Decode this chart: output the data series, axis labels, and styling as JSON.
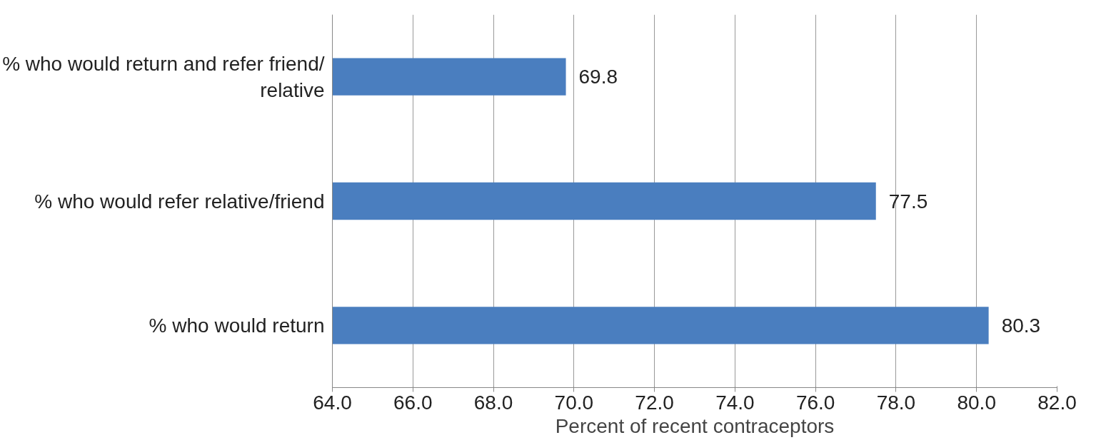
{
  "chart_data": {
    "type": "bar",
    "orientation": "horizontal",
    "categories": [
      "% who would return and refer friend/ relative",
      "% who would refer relative/friend",
      "% who would return"
    ],
    "values": [
      69.8,
      77.5,
      80.3
    ],
    "color": "#4a7ebf",
    "xlabel": "Percent of recent contraceptors",
    "xlim": [
      64,
      82
    ],
    "xticks": [
      {
        "value": 64,
        "label": "64.0"
      },
      {
        "value": 66,
        "label": "66.0"
      },
      {
        "value": 68,
        "label": "68.0"
      },
      {
        "value": 70,
        "label": "70.0"
      },
      {
        "value": 72,
        "label": "72.0"
      },
      {
        "value": 74,
        "label": "74.0"
      },
      {
        "value": 76,
        "label": "76.0"
      },
      {
        "value": 78,
        "label": "78.0"
      },
      {
        "value": 80,
        "label": "80.0"
      },
      {
        "value": 82,
        "label": "82.0"
      }
    ],
    "grid": "x",
    "data_labels": true
  }
}
